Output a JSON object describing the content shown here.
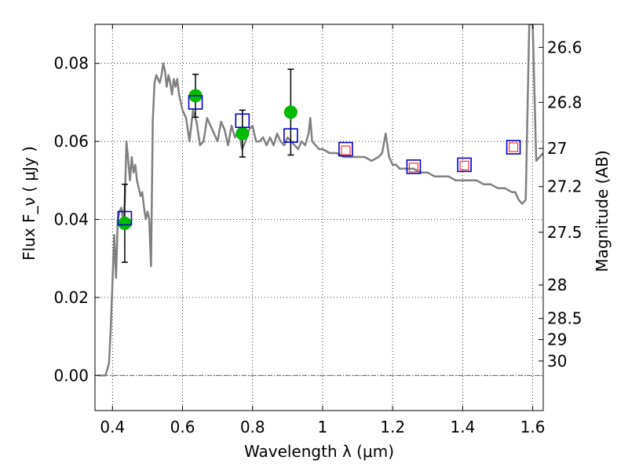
{
  "chart_data": {
    "type": "scatter",
    "xlabel": "Wavelength  λ (μm)",
    "ylabel": "Flux  F_ν  ( μJy )",
    "y2label": "Magnitude (AB)",
    "xlim": [
      0.35,
      1.63
    ],
    "ylim": [
      -0.009,
      0.09
    ],
    "grid": true,
    "x_ticks": [
      "0.4",
      "0.6",
      "0.8",
      "1",
      "1.2",
      "1.4",
      "1.6"
    ],
    "x_tick_values": [
      0.4,
      0.6,
      0.8,
      1.0,
      1.2,
      1.4,
      1.6
    ],
    "y_ticks": [
      "0.00",
      "0.02",
      "0.04",
      "0.06",
      "0.08"
    ],
    "y_tick_values": [
      0.0,
      0.02,
      0.04,
      0.06,
      0.08
    ],
    "y2_ticks": [
      {
        "label": "26.6",
        "flux": 0.0841
      },
      {
        "label": "26.8",
        "flux": 0.07
      },
      {
        "label": "27",
        "flux": 0.0582
      },
      {
        "label": "27.2",
        "flux": 0.0484
      },
      {
        "label": "27.5",
        "flux": 0.0367
      },
      {
        "label": "28",
        "flux": 0.0232
      },
      {
        "label": "28.5",
        "flux": 0.0146
      },
      {
        "label": "29",
        "flux": 0.0092
      },
      {
        "label": "30",
        "flux": 0.0037
      }
    ],
    "series": [
      {
        "kind": "line",
        "color": "#808080",
        "x": [
          0.36,
          0.38,
          0.39,
          0.395,
          0.4,
          0.405,
          0.41,
          0.415,
          0.42,
          0.425,
          0.43,
          0.435,
          0.44,
          0.445,
          0.45,
          0.455,
          0.46,
          0.465,
          0.47,
          0.475,
          0.48,
          0.485,
          0.49,
          0.495,
          0.5,
          0.505,
          0.51,
          0.515,
          0.52,
          0.525,
          0.53,
          0.535,
          0.54,
          0.545,
          0.55,
          0.555,
          0.56,
          0.565,
          0.57,
          0.575,
          0.58,
          0.585,
          0.59,
          0.6,
          0.61,
          0.62,
          0.63,
          0.64,
          0.65,
          0.66,
          0.67,
          0.68,
          0.69,
          0.7,
          0.71,
          0.72,
          0.73,
          0.74,
          0.75,
          0.76,
          0.77,
          0.78,
          0.79,
          0.8,
          0.81,
          0.82,
          0.83,
          0.84,
          0.85,
          0.86,
          0.87,
          0.88,
          0.89,
          0.9,
          0.91,
          0.92,
          0.93,
          0.94,
          0.95,
          0.96,
          0.965,
          0.97,
          0.98,
          0.99,
          1.0,
          1.02,
          1.04,
          1.06,
          1.08,
          1.1,
          1.12,
          1.14,
          1.16,
          1.17,
          1.18,
          1.19,
          1.2,
          1.21,
          1.22,
          1.24,
          1.26,
          1.28,
          1.3,
          1.32,
          1.34,
          1.36,
          1.38,
          1.4,
          1.42,
          1.44,
          1.46,
          1.48,
          1.5,
          1.52,
          1.54,
          1.55,
          1.555,
          1.56,
          1.57,
          1.58,
          1.59,
          1.6,
          1.61,
          1.62,
          1.63
        ],
        "y": [
          0.0,
          0.0,
          0.003,
          0.012,
          0.024,
          0.036,
          0.025,
          0.04,
          0.042,
          0.043,
          0.04,
          0.044,
          0.06,
          0.055,
          0.05,
          0.056,
          0.052,
          0.054,
          0.05,
          0.048,
          0.046,
          0.047,
          0.043,
          0.04,
          0.042,
          0.04,
          0.028,
          0.065,
          0.075,
          0.077,
          0.076,
          0.075,
          0.077,
          0.08,
          0.078,
          0.074,
          0.077,
          0.075,
          0.072,
          0.076,
          0.074,
          0.076,
          0.072,
          0.068,
          0.066,
          0.06,
          0.068,
          0.065,
          0.059,
          0.06,
          0.066,
          0.064,
          0.062,
          0.06,
          0.065,
          0.063,
          0.059,
          0.064,
          0.061,
          0.063,
          0.058,
          0.06,
          0.063,
          0.064,
          0.06,
          0.06,
          0.061,
          0.059,
          0.061,
          0.059,
          0.062,
          0.06,
          0.059,
          0.061,
          0.06,
          0.059,
          0.058,
          0.06,
          0.059,
          0.062,
          0.066,
          0.06,
          0.059,
          0.058,
          0.058,
          0.057,
          0.057,
          0.056,
          0.056,
          0.056,
          0.056,
          0.055,
          0.056,
          0.057,
          0.062,
          0.056,
          0.054,
          0.054,
          0.053,
          0.053,
          0.053,
          0.052,
          0.052,
          0.051,
          0.051,
          0.051,
          0.05,
          0.05,
          0.05,
          0.05,
          0.049,
          0.049,
          0.048,
          0.048,
          0.047,
          0.047,
          0.046,
          0.045,
          0.044,
          0.045,
          0.09,
          0.09,
          0.055,
          0.056,
          0.057
        ]
      },
      {
        "kind": "points",
        "marker": "circle",
        "color": "#00bb00",
        "x": [
          0.435,
          0.637,
          0.771,
          0.909
        ],
        "y": [
          0.039,
          0.0717,
          0.062,
          0.0675
        ],
        "yerr": [
          0.01,
          0.0055,
          0.006,
          0.011
        ]
      },
      {
        "kind": "points",
        "marker": "square-open",
        "color": "#0000cc",
        "x": [
          0.435,
          0.637,
          0.771,
          0.909,
          1.066,
          1.26,
          1.405,
          1.545
        ],
        "y": [
          0.0403,
          0.07,
          0.0653,
          0.0615,
          0.058,
          0.0535,
          0.054,
          0.0585
        ]
      },
      {
        "kind": "points",
        "marker": "square-small-open",
        "color": "#ff3333",
        "x": [
          1.066,
          1.26,
          1.405,
          1.545
        ],
        "y": [
          0.0577,
          0.0533,
          0.0538,
          0.0585
        ]
      }
    ]
  }
}
